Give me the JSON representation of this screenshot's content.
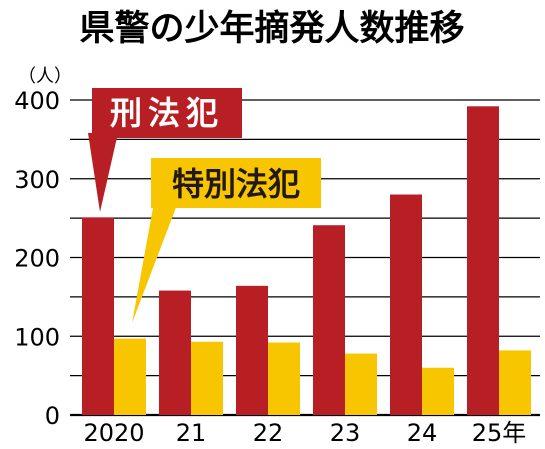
{
  "chart_data": {
    "type": "bar",
    "title": "県警の少年摘発人数推移",
    "ylabel": "（人）",
    "categories": [
      "2020",
      "21",
      "22",
      "23",
      "24",
      "25年"
    ],
    "ylim": [
      0,
      400
    ],
    "yticks": [
      "0",
      "100",
      "200",
      "300",
      "400"
    ],
    "grid": true,
    "series": [
      {
        "name": "刑法犯",
        "values": [
          251,
          158,
          164,
          241,
          280,
          392
        ],
        "color": "#b81f24"
      },
      {
        "name": "特別法犯",
        "values": [
          97,
          93,
          92,
          78,
          60,
          82
        ],
        "color": "#f7c600"
      }
    ],
    "legend_placement": "callouts"
  },
  "colors": {
    "criminal_bar": "#b81f24",
    "special_bar": "#f7c600",
    "special_label_text": "#231815",
    "criminal_label_text": "#ffffff",
    "axis": "#000000",
    "grid": "#000000"
  }
}
